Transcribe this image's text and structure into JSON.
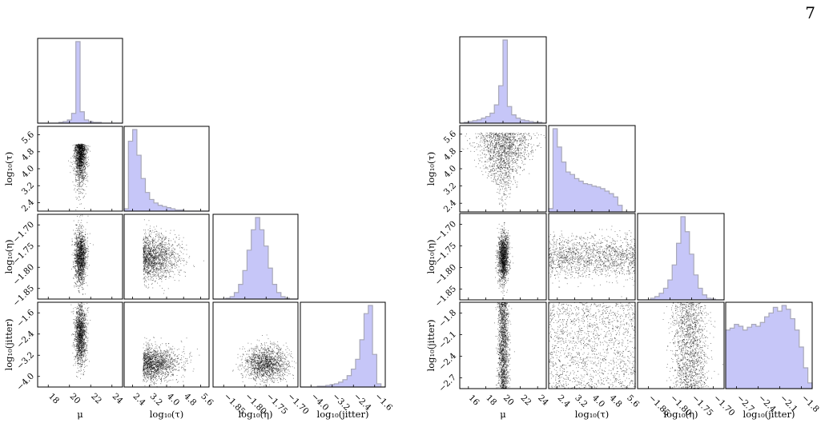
{
  "page": {
    "number": "7"
  },
  "colors": {
    "histogram_fill": "#c6c6f8",
    "histogram_edge": "#a8a8b8",
    "points": "#000000"
  },
  "figures": [
    {
      "id": "left",
      "panels_note": "lower-triangle corner plot",
      "param_labels": [
        "μ",
        "log₁₀(τ)",
        "log₁₀(η)",
        "log₁₀(jitter)"
      ],
      "x_ticks": [
        [
          "18",
          "20",
          "22",
          "24"
        ],
        [
          "2.4",
          "3.2",
          "4.0",
          "4.8",
          "5.6"
        ],
        [
          "−1.85",
          "−1.80",
          "−1.75",
          "−1.70"
        ],
        [
          "−4.0",
          "−3.2",
          "−2.4",
          "−1.6"
        ]
      ],
      "y_ticks": {
        "1": [
          "5.6",
          "4.8",
          "4.0",
          "3.2",
          "2.4"
        ],
        "2": [
          "−1.70",
          "−1.75",
          "−1.80",
          "−1.85"
        ],
        "3": [
          "−1.6",
          "−2.4",
          "−3.2",
          "−4.0"
        ]
      },
      "chart_data": {
        "type": "scatter",
        "params": [
          "mu",
          "log10_tau",
          "log10_eta",
          "log10_jitter"
        ],
        "ranges": [
          [
            16.0,
            25.0
          ],
          [
            2.3,
            6.0
          ],
          [
            -1.89,
            -1.69
          ],
          [
            -4.6,
            -1.5
          ]
        ],
        "histograms": [
          [
            0,
            0,
            0,
            0,
            0,
            1,
            2,
            4,
            12,
            100,
            14,
            4,
            2,
            1,
            1,
            0,
            0,
            0,
            0,
            0
          ],
          [
            2,
            60,
            70,
            48,
            28,
            16,
            10,
            7,
            5,
            4,
            3,
            2,
            1,
            1,
            0,
            0,
            0,
            0,
            0,
            0
          ],
          [
            0,
            0,
            0,
            1,
            3,
            8,
            18,
            35,
            60,
            85,
            100,
            85,
            65,
            38,
            18,
            8,
            3,
            1,
            0,
            0
          ],
          [
            0,
            0,
            0,
            0,
            1,
            1,
            2,
            3,
            4,
            6,
            9,
            14,
            22,
            34,
            58,
            90,
            100,
            40,
            4,
            0
          ]
        ]
      }
    },
    {
      "id": "right",
      "panels_note": "lower-triangle corner plot",
      "param_labels": [
        "μ",
        "log₁₀(τ)",
        "log₁₀(η)",
        "log₁₀(jitter)"
      ],
      "x_ticks": [
        [
          "16",
          "18",
          "20",
          "22",
          "24"
        ],
        [
          "2.4",
          "3.2",
          "4.0",
          "4.8",
          "5.6"
        ],
        [
          "−1.85",
          "−1.80",
          "−1.75",
          "−1.70"
        ],
        [
          "−2.7",
          "−2.4",
          "−2.1",
          "−1.8"
        ]
      ],
      "y_ticks": {
        "1": [
          "5.6",
          "4.8",
          "4.0",
          "3.2",
          "2.4"
        ],
        "2": [
          "−1.70",
          "−1.75",
          "−1.80",
          "−1.85"
        ],
        "3": [
          "−1.8",
          "−2.1",
          "−2.4",
          "−2.7"
        ]
      },
      "chart_data": {
        "type": "scatter",
        "params": [
          "mu",
          "log10_tau",
          "log10_eta",
          "log10_jitter"
        ],
        "ranges": [
          [
            15.0,
            25.5
          ],
          [
            2.3,
            6.0
          ],
          [
            -1.89,
            -1.69
          ],
          [
            -3.0,
            -1.6
          ]
        ],
        "histograms": [
          [
            0,
            1,
            2,
            3,
            4,
            6,
            8,
            12,
            22,
            45,
            100,
            20,
            10,
            6,
            4,
            3,
            2,
            1,
            1,
            0
          ],
          [
            4,
            100,
            78,
            60,
            48,
            45,
            40,
            37,
            34,
            33,
            31,
            30,
            28,
            25,
            22,
            18,
            8,
            0,
            0,
            0
          ],
          [
            0,
            0,
            0,
            2,
            4,
            8,
            14,
            24,
            42,
            68,
            100,
            82,
            55,
            30,
            14,
            6,
            2,
            1,
            0,
            0
          ],
          [
            62,
            64,
            68,
            66,
            62,
            65,
            68,
            66,
            70,
            76,
            80,
            86,
            82,
            88,
            84,
            74,
            62,
            44,
            22,
            6
          ]
        ]
      }
    }
  ]
}
